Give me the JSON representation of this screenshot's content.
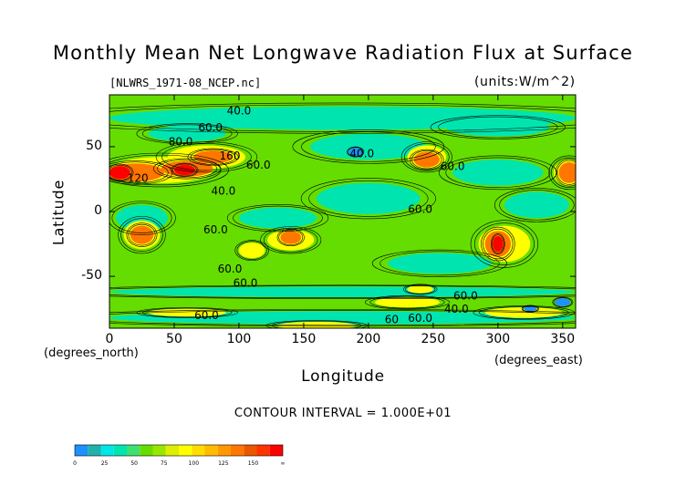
{
  "figure": {
    "title": "Monthly Mean Net Longwave Radiation Flux at Surface",
    "file_label": "[NLWRS_1971-08_NCEP.nc]",
    "units_label": "(units:W/m^2)",
    "contour_interval": "CONTOUR INTERVAL = 1.000E+01"
  },
  "chart_data": {
    "type": "heatmap",
    "title": "Monthly Mean Net Longwave Radiation Flux at Surface",
    "xlabel": "Longitude",
    "ylabel": "Latitude",
    "x_unit_label": "(degrees_east)",
    "y_unit_label": "(degrees_north)",
    "xlim": [
      0,
      360
    ],
    "ylim": [
      -90,
      90
    ],
    "x_ticks": [
      0,
      50,
      100,
      150,
      200,
      250,
      300,
      350
    ],
    "y_ticks": [
      -50,
      0,
      50
    ],
    "contour_labels": [
      {
        "text": "40.0",
        "lon": 100,
        "lat": 75
      },
      {
        "text": "60.0",
        "lon": 78,
        "lat": 62
      },
      {
        "text": "80.0",
        "lon": 55,
        "lat": 51
      },
      {
        "text": "160",
        "lon": 93,
        "lat": 40
      },
      {
        "text": "60.0",
        "lon": 115,
        "lat": 33
      },
      {
        "text": "120",
        "lon": 22,
        "lat": 23
      },
      {
        "text": "40.0",
        "lon": 88,
        "lat": 13
      },
      {
        "text": "40.0",
        "lon": 195,
        "lat": 42
      },
      {
        "text": "60.0",
        "lon": 265,
        "lat": 32
      },
      {
        "text": "60.0",
        "lon": 240,
        "lat": -1
      },
      {
        "text": "60.0",
        "lon": 82,
        "lat": -17
      },
      {
        "text": "60.0",
        "lon": 93,
        "lat": -47
      },
      {
        "text": "60.0",
        "lon": 105,
        "lat": -58
      },
      {
        "text": "60.0",
        "lon": 275,
        "lat": -68
      },
      {
        "text": "40.0",
        "lon": 268,
        "lat": -78
      },
      {
        "text": "60.0",
        "lon": 75,
        "lat": -83
      },
      {
        "text": "60",
        "lon": 218,
        "lat": -86
      },
      {
        "text": "60.0",
        "lon": 240,
        "lat": -85
      }
    ],
    "colorbar": {
      "ticks": [
        "0",
        "25",
        "50",
        "75",
        "100",
        "125",
        "150",
        "∞"
      ],
      "colors": [
        "#1e90ff",
        "#20b2aa",
        "#00e5e5",
        "#00e5b0",
        "#40e070",
        "#66dd00",
        "#99e600",
        "#ddee00",
        "#ffff00",
        "#ffdd00",
        "#ffbb00",
        "#ff9900",
        "#ff7700",
        "#ee5500",
        "#ff3300",
        "#ff0000"
      ]
    },
    "colors": {
      "background_level": "#66dd00",
      "low": "#00e5b0",
      "mid": "#ffff00",
      "high": "#ff7700",
      "peak": "#ff0000",
      "min": "#1e90ff"
    }
  }
}
